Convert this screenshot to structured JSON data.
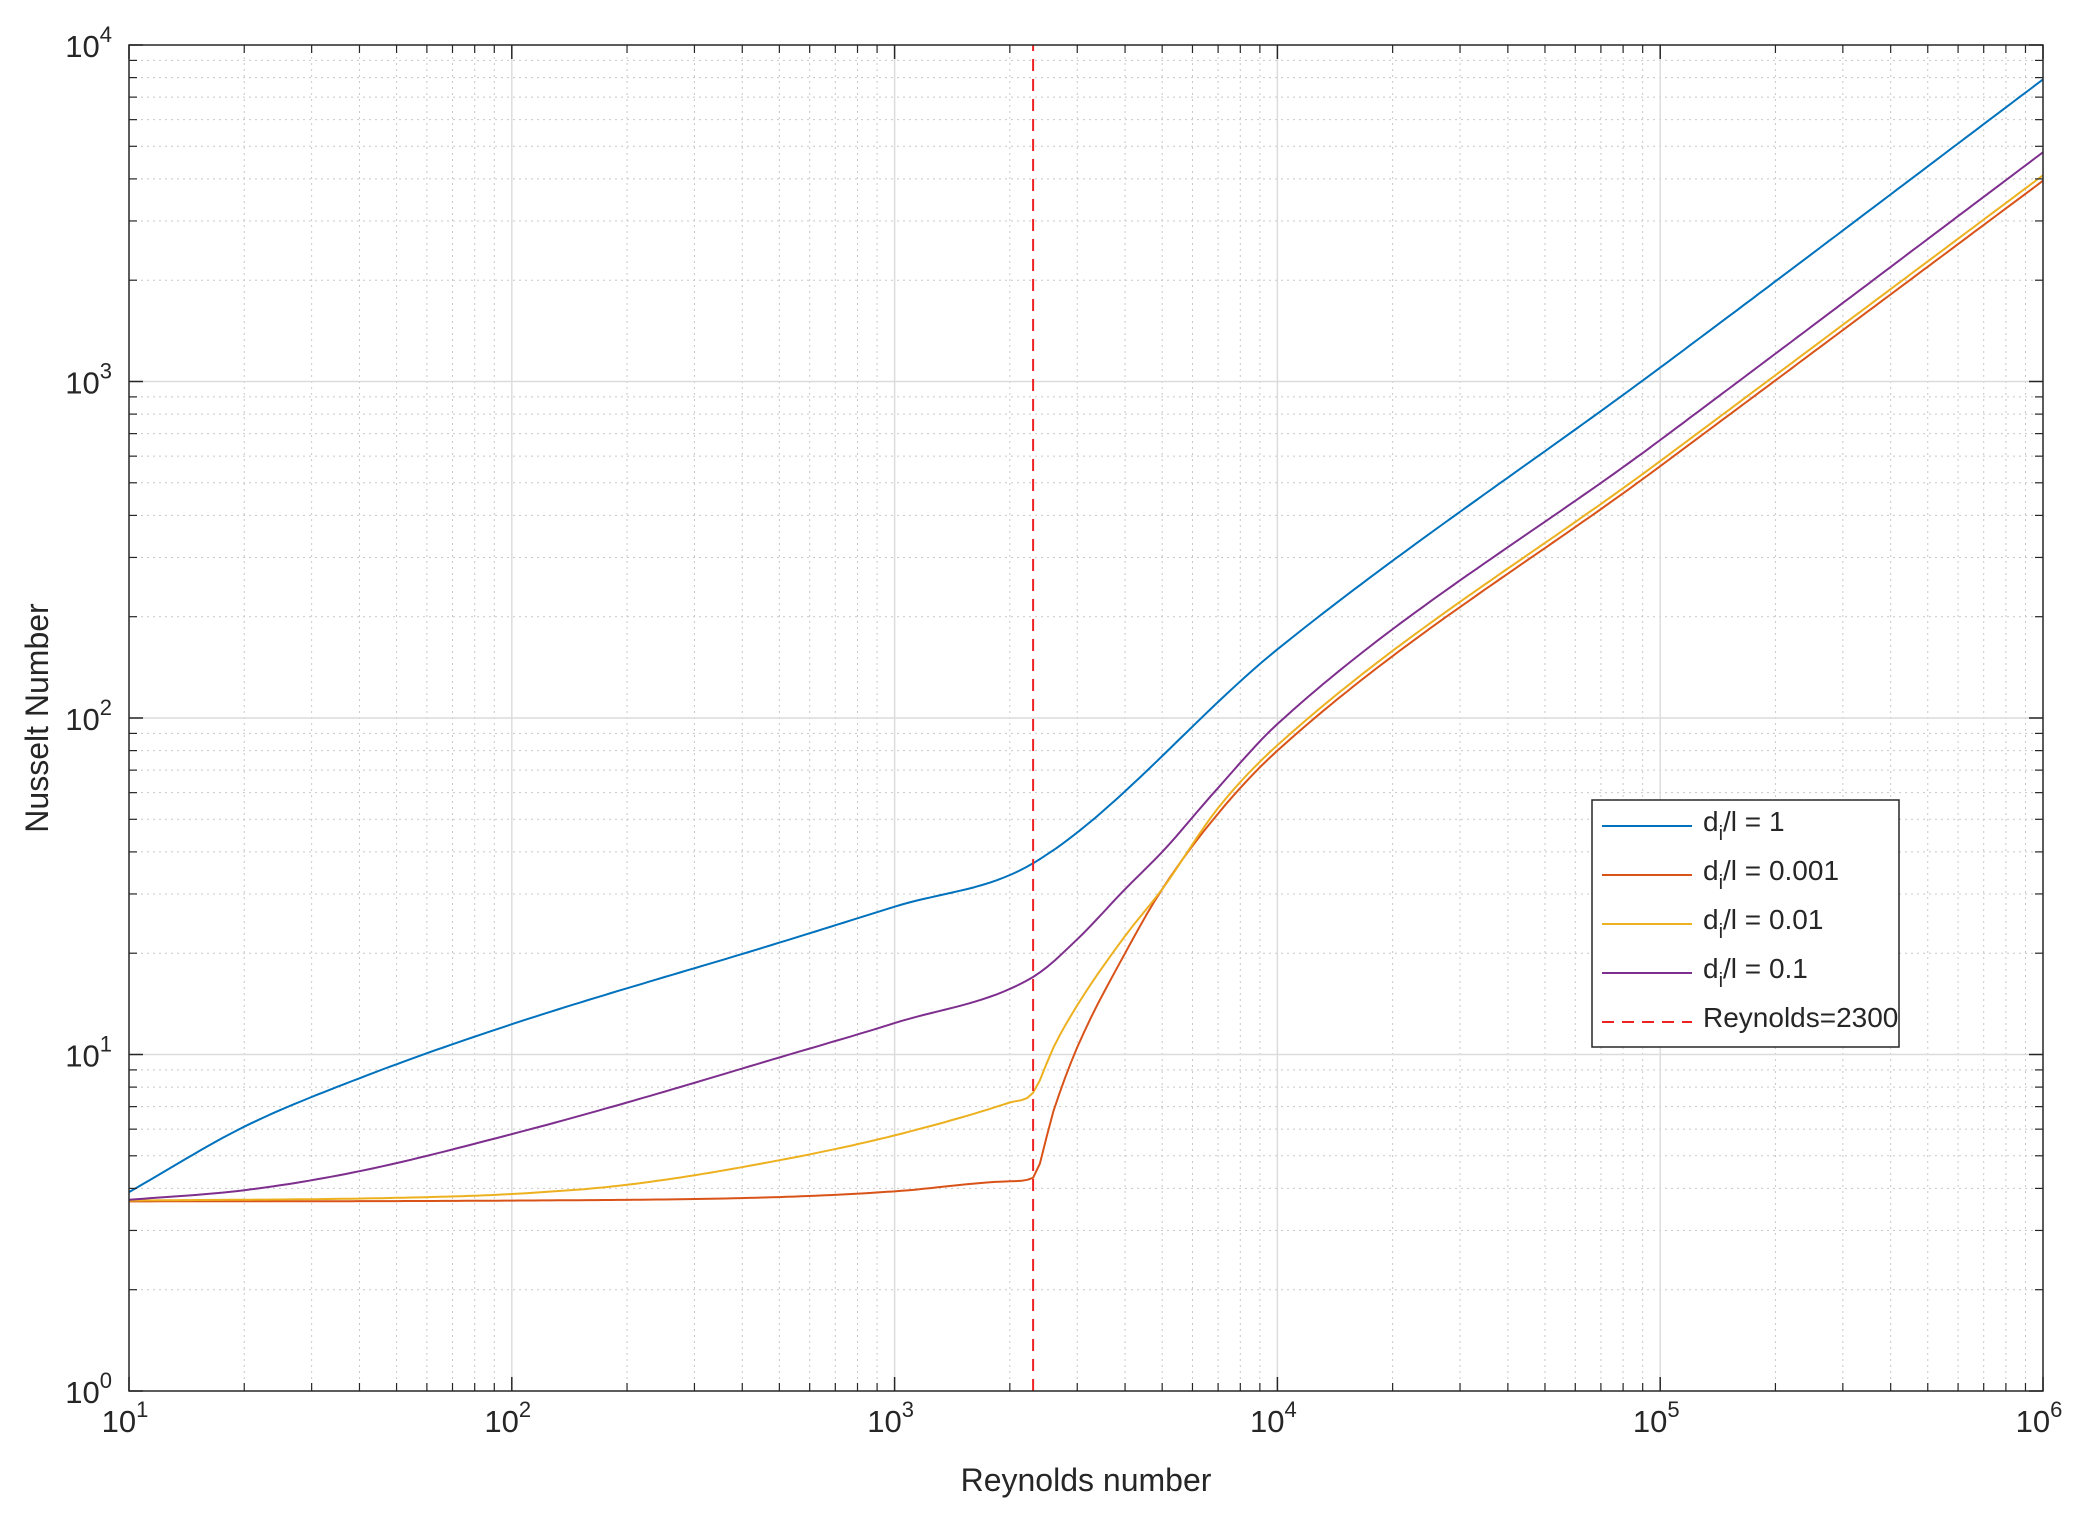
{
  "chart_data": {
    "type": "line",
    "xlabel": "Reynolds number",
    "ylabel": "Nusselt Number",
    "xscale": "log",
    "yscale": "log",
    "xlim": [
      10,
      1000000
    ],
    "ylim": [
      1,
      10000
    ],
    "grid": true,
    "minor_grid": true,
    "x_ticks": [
      {
        "base": "10",
        "exp": "1"
      },
      {
        "base": "10",
        "exp": "2"
      },
      {
        "base": "10",
        "exp": "3"
      },
      {
        "base": "10",
        "exp": "4"
      },
      {
        "base": "10",
        "exp": "5"
      },
      {
        "base": "10",
        "exp": "6"
      }
    ],
    "y_ticks": [
      {
        "base": "10",
        "exp": "0"
      },
      {
        "base": "10",
        "exp": "1"
      },
      {
        "base": "10",
        "exp": "2"
      },
      {
        "base": "10",
        "exp": "3"
      },
      {
        "base": "10",
        "exp": "4"
      }
    ],
    "legend_position": "right-middle",
    "series": [
      {
        "label_main": "d",
        "label_sub": "i",
        "label_rest": "/l = 1",
        "color": "#0072BD",
        "style": "solid",
        "x": [
          10,
          20,
          40,
          100,
          500,
          1000,
          2300,
          10000,
          100000,
          1000000
        ],
        "y": [
          3.9,
          6.1,
          8.5,
          12.3,
          21.5,
          27.5,
          37,
          160,
          1100,
          7900
        ]
      },
      {
        "label_main": "d",
        "label_sub": "i",
        "label_rest": "/l = 0.001",
        "color": "#D95319",
        "style": "solid",
        "x": [
          10,
          100,
          500,
          1000,
          2000,
          2300,
          2600,
          3000,
          4000,
          5000,
          7000,
          10000,
          100000,
          1000000
        ],
        "y": [
          3.66,
          3.68,
          3.77,
          3.92,
          4.2,
          4.3,
          6.8,
          10.5,
          20,
          31,
          52,
          80,
          560,
          3950
        ]
      },
      {
        "label_main": "d",
        "label_sub": "i",
        "label_rest": "/l = 0.01",
        "color": "#EDB120",
        "style": "solid",
        "x": [
          10,
          50,
          100,
          200,
          500,
          1000,
          2000,
          2300,
          2600,
          3000,
          4000,
          5000,
          7000,
          10000,
          100000,
          1000000
        ],
        "y": [
          3.68,
          3.75,
          3.85,
          4.1,
          4.85,
          5.75,
          7.2,
          7.7,
          10.5,
          14,
          22.5,
          31,
          54,
          83,
          580,
          4100
        ]
      },
      {
        "label_main": "d",
        "label_sub": "i",
        "label_rest": "/l = 0.1",
        "color": "#7E2F8E",
        "style": "solid",
        "x": [
          10,
          20,
          40,
          100,
          200,
          500,
          1000,
          2300,
          3000,
          4000,
          5000,
          7000,
          10000,
          100000,
          1000000
        ],
        "y": [
          3.7,
          3.95,
          4.5,
          5.8,
          7.2,
          9.8,
          12.4,
          17,
          22,
          31,
          40,
          62,
          96,
          670,
          4800
        ]
      },
      {
        "label_main": "Reynolds=2300",
        "label_sub": "",
        "label_rest": "",
        "color": "#EE2222",
        "style": "dashed",
        "x": [
          2300,
          2300
        ],
        "y": [
          1,
          10000
        ]
      }
    ]
  }
}
